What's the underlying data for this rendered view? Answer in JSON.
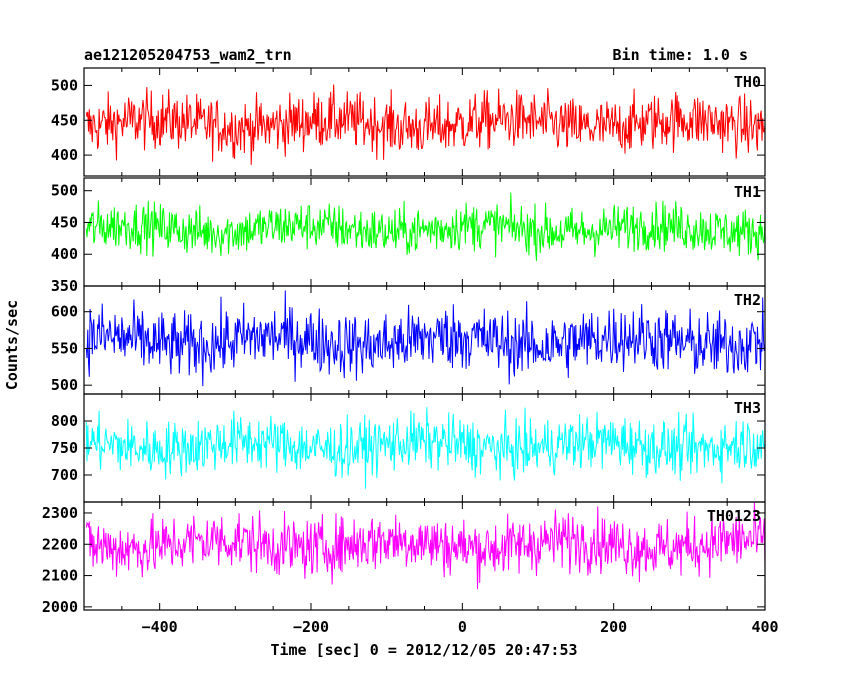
{
  "chart_data": {
    "type": "line",
    "title_left": "ae121205204753_wam2_trn",
    "title_right": "Bin time: 1.0 s",
    "xlabel": "Time [sec] 0 = 2012/12/05 20:47:53",
    "ylabel": "Counts/sec",
    "xlim": [
      -500,
      400
    ],
    "x_ticks": [
      -400,
      -200,
      0,
      200,
      400
    ],
    "x_tick_labels": [
      "−400",
      "−200",
      "0",
      "200",
      "400"
    ],
    "grid": false,
    "panels": [
      {
        "name": "TH0",
        "color": "#ff0000",
        "ylim": [
          370,
          525
        ],
        "yticks": [
          400,
          450,
          500
        ],
        "ytick_labels": [
          "400",
          "450",
          "500"
        ],
        "mean": 445,
        "spread": 24,
        "approx_range": [
          375,
          525
        ]
      },
      {
        "name": "TH1",
        "color": "#00ff00",
        "ylim": [
          350,
          520
        ],
        "yticks": [
          350,
          400,
          450,
          500
        ],
        "ytick_labels": [
          "350",
          "400",
          "450",
          "500"
        ],
        "mean": 440,
        "spread": 22,
        "approx_range": [
          355,
          515
        ]
      },
      {
        "name": "TH2",
        "color": "#0000ff",
        "ylim": [
          488,
          635
        ],
        "yticks": [
          500,
          550,
          600
        ],
        "ytick_labels": [
          "500",
          "550",
          "600"
        ],
        "mean": 560,
        "spread": 26,
        "approx_range": [
          490,
          635
        ]
      },
      {
        "name": "TH3",
        "color": "#00ffff",
        "ylim": [
          650,
          850
        ],
        "yticks": [
          700,
          750,
          800
        ],
        "ytick_labels": [
          "700",
          "750",
          "800"
        ],
        "mean": 755,
        "spread": 30,
        "approx_range": [
          655,
          850
        ]
      },
      {
        "name": "TH0123",
        "color": "#ff00ff",
        "ylim": [
          1990,
          2335
        ],
        "yticks": [
          2000,
          2100,
          2200,
          2300
        ],
        "ytick_labels": [
          "2000",
          "2100",
          "2200",
          "2300"
        ],
        "mean": 2200,
        "spread": 55,
        "approx_range": [
          1995,
          2335
        ]
      }
    ],
    "series_x_range": [
      -500,
      400
    ],
    "series_step": 1
  }
}
